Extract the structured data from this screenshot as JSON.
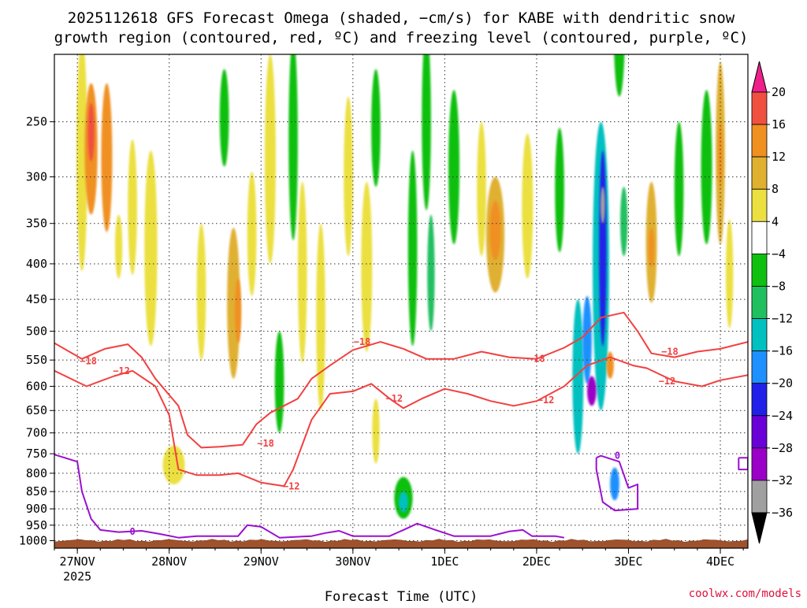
{
  "title_line1": "2025112618 GFS Forecast Omega (shaded, −cm/s) for KABE with dendritic snow",
  "title_line2": "growth region (contoured, red, ºC) and freezing level (contoured, purple, ºC)",
  "xlabel": "Forecast Time (UTC)",
  "credit": "coolwx.com/models",
  "colors": {
    "dgz_contour": "#f24040",
    "freezing_contour": "#9b10d0",
    "ground": "#a0522d"
  },
  "chart_data": {
    "type": "heatmap",
    "station": "KABE",
    "run": "2025112618",
    "x": {
      "unit": "days from 27NOV 00Z",
      "range": [
        -0.25,
        7.3
      ],
      "ticks": [
        {
          "value": 0,
          "label": "27NOV",
          "sublabel": "2025"
        },
        {
          "value": 1,
          "label": "28NOV",
          "sublabel": ""
        },
        {
          "value": 2,
          "label": "29NOV",
          "sublabel": ""
        },
        {
          "value": 3,
          "label": "30NOV",
          "sublabel": ""
        },
        {
          "value": 4,
          "label": "1DEC",
          "sublabel": ""
        },
        {
          "value": 5,
          "label": "2DEC",
          "sublabel": ""
        },
        {
          "value": 6,
          "label": "3DEC",
          "sublabel": ""
        },
        {
          "value": 7,
          "label": "4DEC",
          "sublabel": ""
        }
      ]
    },
    "y": {
      "unit": "hPa",
      "scale": "log",
      "range_top_bottom": [
        200,
        1025
      ],
      "ticks": [
        250,
        300,
        350,
        400,
        450,
        500,
        550,
        600,
        650,
        700,
        750,
        800,
        850,
        900,
        950,
        1000
      ]
    },
    "grid": true,
    "colorbar": {
      "levels": [
        -36,
        -32,
        -28,
        -24,
        -20,
        -16,
        -12,
        -8,
        -4,
        4,
        8,
        12,
        16,
        20
      ],
      "labels": [
        "20",
        "16",
        "12",
        "8",
        "4",
        "−4",
        "−8",
        "−12",
        "−16",
        "−20",
        "−24",
        "−28",
        "−32",
        "−36"
      ],
      "colors": [
        "#000000",
        "#a0a0a0",
        "#9b00c8",
        "#6a00d8",
        "#2020e8",
        "#1e90ff",
        "#00c0c0",
        "#20c060",
        "#10c010",
        "#ffffff",
        "#ebe040",
        "#e0b030",
        "#f09020",
        "#f05040",
        "#f0208a"
      ]
    },
    "omega_cells": [
      {
        "x": 0.05,
        "p": 300,
        "hw": 0.06,
        "hp": 220,
        "v": 7
      },
      {
        "x": 0.15,
        "p": 280,
        "hw": 0.07,
        "hp": 120,
        "v": 13
      },
      {
        "x": 0.15,
        "p": 260,
        "hw": 0.035,
        "hp": 50,
        "v": 17
      },
      {
        "x": 0.32,
        "p": 290,
        "hw": 0.06,
        "hp": 140,
        "v": 12
      },
      {
        "x": 0.45,
        "p": 380,
        "hw": 0.04,
        "hp": 80,
        "v": 6
      },
      {
        "x": 0.6,
        "p": 340,
        "hw": 0.05,
        "hp": 150,
        "v": 6
      },
      {
        "x": 0.8,
        "p": 400,
        "hw": 0.07,
        "hp": 250,
        "v": 7
      },
      {
        "x": 1.05,
        "p": 780,
        "hw": 0.12,
        "hp": 100,
        "v": 6
      },
      {
        "x": 1.35,
        "p": 450,
        "hw": 0.05,
        "hp": 200,
        "v": 6
      },
      {
        "x": 1.6,
        "p": 250,
        "hw": 0.05,
        "hp": 80,
        "v": -7
      },
      {
        "x": 1.7,
        "p": 470,
        "hw": 0.07,
        "hp": 230,
        "v": 9
      },
      {
        "x": 1.75,
        "p": 470,
        "hw": 0.035,
        "hp": 100,
        "v": 13
      },
      {
        "x": 1.9,
        "p": 370,
        "hw": 0.05,
        "hp": 150,
        "v": 6
      },
      {
        "x": 2.1,
        "p": 300,
        "hw": 0.06,
        "hp": 200,
        "v": 7
      },
      {
        "x": 2.2,
        "p": 600,
        "hw": 0.05,
        "hp": 200,
        "v": -6
      },
      {
        "x": 2.35,
        "p": 280,
        "hw": 0.05,
        "hp": 180,
        "v": -6
      },
      {
        "x": 2.45,
        "p": 430,
        "hw": 0.05,
        "hp": 250,
        "v": 6
      },
      {
        "x": 2.65,
        "p": 500,
        "hw": 0.05,
        "hp": 300,
        "v": 7
      },
      {
        "x": 2.95,
        "p": 310,
        "hw": 0.05,
        "hp": 160,
        "v": 7
      },
      {
        "x": 3.15,
        "p": 420,
        "hw": 0.06,
        "hp": 230,
        "v": 6
      },
      {
        "x": 3.25,
        "p": 260,
        "hw": 0.05,
        "hp": 100,
        "v": -7
      },
      {
        "x": 3.25,
        "p": 700,
        "hw": 0.04,
        "hp": 150,
        "v": 6
      },
      {
        "x": 3.55,
        "p": 870,
        "hw": 0.1,
        "hp": 120,
        "v": -8
      },
      {
        "x": 3.55,
        "p": 880,
        "hw": 0.05,
        "hp": 60,
        "v": -13
      },
      {
        "x": 3.65,
        "p": 400,
        "hw": 0.05,
        "hp": 250,
        "v": -7
      },
      {
        "x": 3.8,
        "p": 260,
        "hw": 0.05,
        "hp": 150,
        "v": -7
      },
      {
        "x": 3.85,
        "p": 420,
        "hw": 0.04,
        "hp": 160,
        "v": -9
      },
      {
        "x": 4.1,
        "p": 300,
        "hw": 0.06,
        "hp": 150,
        "v": -6
      },
      {
        "x": 4.4,
        "p": 320,
        "hw": 0.05,
        "hp": 140,
        "v": 6
      },
      {
        "x": 4.55,
        "p": 370,
        "hw": 0.1,
        "hp": 140,
        "v": 9
      },
      {
        "x": 4.55,
        "p": 360,
        "hw": 0.06,
        "hp": 70,
        "v": 13
      },
      {
        "x": 4.9,
        "p": 340,
        "hw": 0.06,
        "hp": 160,
        "v": 6
      },
      {
        "x": 5.25,
        "p": 320,
        "hw": 0.05,
        "hp": 130,
        "v": -7
      },
      {
        "x": 5.45,
        "p": 600,
        "hw": 0.06,
        "hp": 300,
        "v": -13
      },
      {
        "x": 5.55,
        "p": 520,
        "hw": 0.05,
        "hp": 150,
        "v": -19
      },
      {
        "x": 5.7,
        "p": 450,
        "hw": 0.09,
        "hp": 400,
        "v": -14
      },
      {
        "x": 5.72,
        "p": 400,
        "hw": 0.04,
        "hp": 250,
        "v": -24
      },
      {
        "x": 5.72,
        "p": 330,
        "hw": 0.025,
        "hp": 40,
        "v": -34
      },
      {
        "x": 5.6,
        "p": 610,
        "hw": 0.05,
        "hp": 60,
        "v": -29
      },
      {
        "x": 5.9,
        "p": 190,
        "hw": 0.06,
        "hp": 80,
        "v": -8
      },
      {
        "x": 5.85,
        "p": 830,
        "hw": 0.05,
        "hp": 90,
        "v": -19
      },
      {
        "x": 5.8,
        "p": 560,
        "hw": 0.04,
        "hp": 50,
        "v": 15
      },
      {
        "x": 5.95,
        "p": 350,
        "hw": 0.04,
        "hp": 80,
        "v": -9
      },
      {
        "x": 6.25,
        "p": 380,
        "hw": 0.06,
        "hp": 150,
        "v": 9
      },
      {
        "x": 6.25,
        "p": 380,
        "hw": 0.03,
        "hp": 50,
        "v": 13
      },
      {
        "x": 6.55,
        "p": 320,
        "hw": 0.05,
        "hp": 140,
        "v": -7
      },
      {
        "x": 6.85,
        "p": 300,
        "hw": 0.06,
        "hp": 150,
        "v": -7
      },
      {
        "x": 7.0,
        "p": 290,
        "hw": 0.05,
        "hp": 170,
        "v": 8
      },
      {
        "x": 7.0,
        "p": 280,
        "hw": 0.025,
        "hp": 60,
        "v": 12
      },
      {
        "x": 7.1,
        "p": 420,
        "hw": 0.04,
        "hp": 150,
        "v": 6
      }
    ],
    "dgz_contours": [
      {
        "label": "−18",
        "label_at": 0,
        "points": [
          [
            -0.25,
            520
          ],
          [
            0.05,
            548
          ],
          [
            0.3,
            530
          ],
          [
            0.55,
            522
          ],
          [
            0.7,
            545
          ],
          [
            0.85,
            585
          ],
          [
            1.1,
            640
          ],
          [
            1.2,
            705
          ],
          [
            1.35,
            735
          ],
          [
            1.55,
            733
          ],
          [
            1.8,
            728
          ],
          [
            1.95,
            680
          ],
          [
            2.1,
            655
          ],
          [
            2.4,
            625
          ],
          [
            2.55,
            585
          ],
          [
            2.75,
            560
          ],
          [
            3.0,
            532
          ],
          [
            3.3,
            518
          ],
          [
            3.55,
            530
          ],
          [
            3.8,
            548
          ],
          [
            4.1,
            548
          ],
          [
            4.4,
            535
          ],
          [
            4.7,
            545
          ],
          [
            5.0,
            548
          ],
          [
            5.3,
            528
          ],
          [
            5.5,
            510
          ],
          [
            5.7,
            478
          ],
          [
            5.95,
            470
          ],
          [
            6.1,
            500
          ],
          [
            6.25,
            538
          ],
          [
            6.5,
            545
          ],
          [
            6.75,
            535
          ],
          [
            7.0,
            530
          ],
          [
            7.3,
            518
          ]
        ],
        "label_points": [
          [
            0.12,
            552
          ],
          [
            2.05,
            725
          ],
          [
            3.1,
            518
          ],
          [
            5.0,
            548
          ],
          [
            6.45,
            535
          ]
        ]
      },
      {
        "label": "−12",
        "label_at": 0,
        "points": [
          [
            -0.25,
            570
          ],
          [
            0.1,
            600
          ],
          [
            0.4,
            580
          ],
          [
            0.6,
            570
          ],
          [
            0.85,
            600
          ],
          [
            1.0,
            660
          ],
          [
            1.1,
            790
          ],
          [
            1.3,
            805
          ],
          [
            1.55,
            805
          ],
          [
            1.75,
            800
          ],
          [
            2.0,
            825
          ],
          [
            2.25,
            835
          ],
          [
            2.35,
            790
          ],
          [
            2.55,
            670
          ],
          [
            2.75,
            615
          ],
          [
            3.0,
            610
          ],
          [
            3.2,
            595
          ],
          [
            3.4,
            625
          ],
          [
            3.55,
            645
          ],
          [
            3.75,
            625
          ],
          [
            4.0,
            605
          ],
          [
            4.25,
            615
          ],
          [
            4.5,
            630
          ],
          [
            4.75,
            640
          ],
          [
            5.0,
            630
          ],
          [
            5.3,
            600
          ],
          [
            5.55,
            560
          ],
          [
            5.8,
            545
          ],
          [
            6.05,
            560
          ],
          [
            6.2,
            565
          ],
          [
            6.5,
            590
          ],
          [
            6.8,
            600
          ],
          [
            7.0,
            588
          ],
          [
            7.3,
            578
          ]
        ],
        "label_points": [
          [
            0.48,
            570
          ],
          [
            2.33,
            835
          ],
          [
            3.45,
            625
          ],
          [
            5.1,
            628
          ],
          [
            6.42,
            590
          ]
        ]
      }
    ],
    "freezing_contours": [
      {
        "label": "0",
        "label_at": 0,
        "points": [
          [
            -0.25,
            752
          ],
          [
            0.0,
            770
          ],
          [
            0.05,
            850
          ],
          [
            0.15,
            930
          ],
          [
            0.25,
            965
          ],
          [
            0.45,
            972
          ],
          [
            0.7,
            968
          ],
          [
            0.9,
            978
          ],
          [
            1.1,
            990
          ],
          [
            1.3,
            985
          ],
          [
            1.5,
            985
          ],
          [
            1.75,
            985
          ],
          [
            1.85,
            950
          ],
          [
            2.0,
            955
          ],
          [
            2.2,
            990
          ],
          [
            2.55,
            985
          ],
          [
            2.7,
            975
          ],
          [
            2.85,
            968
          ],
          [
            3.0,
            985
          ],
          [
            3.4,
            985
          ],
          [
            3.55,
            965
          ],
          [
            3.7,
            945
          ],
          [
            3.9,
            965
          ],
          [
            4.1,
            985
          ],
          [
            4.5,
            985
          ],
          [
            4.7,
            970
          ],
          [
            4.85,
            965
          ],
          [
            4.95,
            985
          ],
          [
            5.2,
            985
          ],
          [
            5.3,
            990
          ]
        ],
        "label_points": [
          [
            0.6,
            970
          ]
        ]
      },
      {
        "label": "0",
        "label_at": 0,
        "points": [
          [
            5.65,
            760
          ],
          [
            5.7,
            755
          ],
          [
            5.9,
            770
          ],
          [
            6.0,
            840
          ],
          [
            6.1,
            830
          ],
          [
            6.1,
            900
          ],
          [
            5.85,
            905
          ],
          [
            5.72,
            880
          ],
          [
            5.65,
            790
          ],
          [
            5.65,
            760
          ]
        ],
        "label_points": [
          [
            5.88,
            755
          ]
        ]
      },
      {
        "label": "",
        "label_at": 0,
        "points": [
          [
            7.2,
            760
          ],
          [
            7.3,
            760
          ],
          [
            7.3,
            790
          ],
          [
            7.2,
            790
          ],
          [
            7.2,
            760
          ]
        ],
        "label_points": []
      }
    ],
    "terrain_top_hPa": 1000,
    "surface_hPa": 1025
  }
}
